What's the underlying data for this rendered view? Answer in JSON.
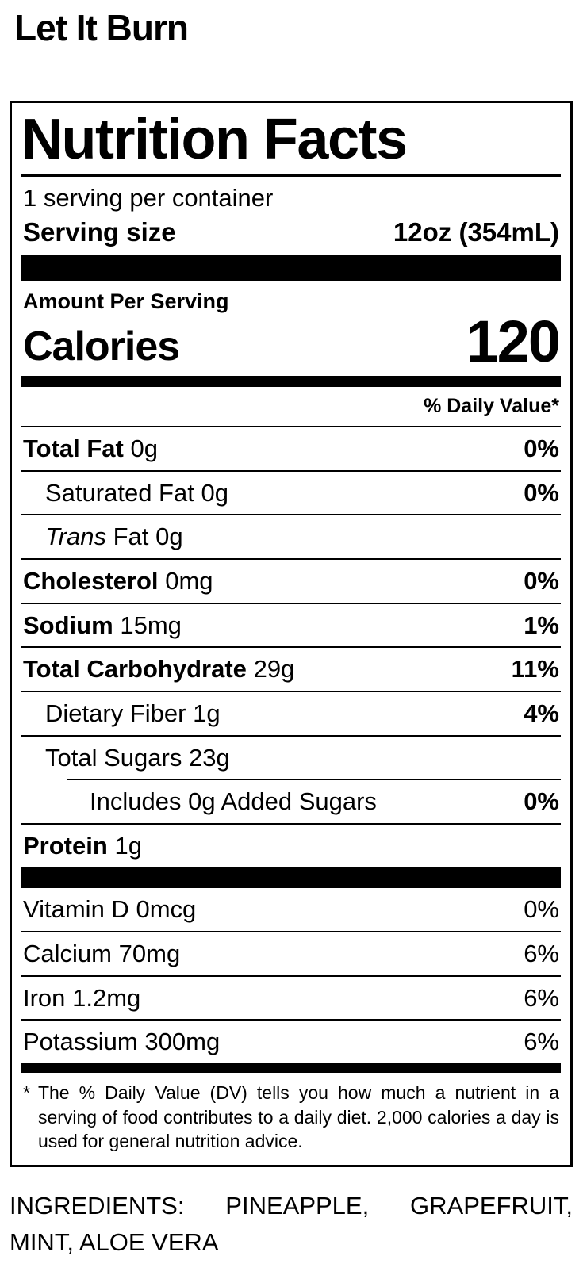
{
  "page": {
    "title": "Let It Burn",
    "background_color": "#ffffff",
    "text_color": "#000000"
  },
  "label": {
    "heading": "Nutrition Facts",
    "servings_per_container": "1 serving per container",
    "serving_size_label": "Serving size",
    "serving_size_value": "12oz (354mL)",
    "amount_per_serving": "Amount Per Serving",
    "calories_label": "Calories",
    "calories_value": "120",
    "daily_value_header": "% Daily Value*",
    "rows": [
      {
        "name": "Total Fat",
        "amount": "0g",
        "dv": "0%"
      },
      {
        "name": "Saturated Fat",
        "amount": "0g",
        "dv": "0%"
      },
      {
        "name_italic": "Trans",
        "name": "Fat",
        "amount": "0g",
        "dv": ""
      },
      {
        "name": "Cholesterol",
        "amount": "0mg",
        "dv": "0%"
      },
      {
        "name": "Sodium",
        "amount": "15mg",
        "dv": "1%"
      },
      {
        "name": "Total Carbohydrate",
        "amount": "29g",
        "dv": "11%"
      },
      {
        "name": "Dietary Fiber",
        "amount": "1g",
        "dv": "4%"
      },
      {
        "name": "Total Sugars",
        "amount": "23g",
        "dv": ""
      },
      {
        "name": "Includes 0g Added Sugars",
        "amount": "",
        "dv": "0%"
      },
      {
        "name": "Protein",
        "amount": "1g",
        "dv": ""
      }
    ],
    "micronutrients": [
      {
        "name": "Vitamin D",
        "amount": "0mcg",
        "dv": "0%"
      },
      {
        "name": "Calcium",
        "amount": "70mg",
        "dv": "6%"
      },
      {
        "name": "Iron",
        "amount": "1.2mg",
        "dv": "6%"
      },
      {
        "name": "Potassium",
        "amount": "300mg",
        "dv": "6%"
      }
    ],
    "footnote_marker": "*",
    "footnote": "The % Daily Value (DV) tells you how much a nutrient in a serving of food contributes to a daily diet. 2,000 calories a day is used for general nutrition advice."
  },
  "ingredients": {
    "text": "INGREDIENTS: PINEAPPLE, GRAPEFRUIT, MINT, ALOE VERA"
  }
}
